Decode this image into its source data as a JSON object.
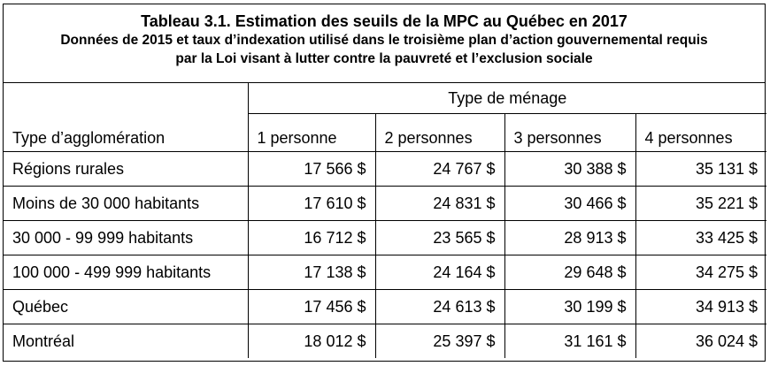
{
  "caption": {
    "title": "Tableau 3.1. Estimation des seuils de la MPC au Québec en 2017",
    "subtitle_line1": "Données de 2015 et taux d’indexation utilisé dans le troisième plan d’action gouvernemental requis",
    "subtitle_line2": "par la Loi visant à lutter contre la pauvreté et l’exclusion sociale"
  },
  "header": {
    "group_label": "Type de ménage",
    "row_label": "Type d’agglomération",
    "columns": [
      "1 personne",
      "2 personnes",
      "3 personnes",
      "4 personnes"
    ]
  },
  "rows": [
    {
      "label": "Régions rurales",
      "values": [
        "17 566 $",
        "24 767 $",
        "30 388 $",
        "35 131 $"
      ]
    },
    {
      "label": "Moins de 30 000 habitants",
      "values": [
        "17 610 $",
        "24 831 $",
        "30 466 $",
        "35 221 $"
      ]
    },
    {
      "label": "30 000 - 99 999 habitants",
      "values": [
        "16 712 $",
        "23 565 $",
        "28 913 $",
        "33 425 $"
      ]
    },
    {
      "label": "100 000 - 499 999 habitants",
      "values": [
        "17 138 $",
        "24 164 $",
        "29 648 $",
        "34 275 $"
      ]
    },
    {
      "label": "Québec",
      "values": [
        "17 456 $",
        "24 613 $",
        "30 199 $",
        "34 913 $"
      ]
    },
    {
      "label": "Montréal",
      "values": [
        "18 012 $",
        "25 397 $",
        "31 161 $",
        "36 024 $"
      ]
    }
  ]
}
